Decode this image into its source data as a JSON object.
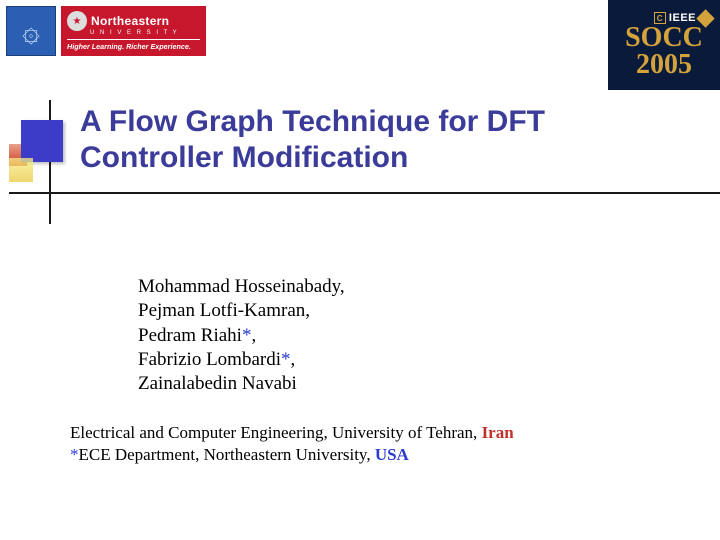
{
  "logos": {
    "tehran_glyph": "۞",
    "northeastern": {
      "name": "Northeastern",
      "univ": "U N I V E R S I T Y",
      "tagline": "Higher Learning. Richer Experience."
    },
    "socc": {
      "ieee": "IEEE",
      "c": "C",
      "line1": "SOCC",
      "line2": "2005"
    }
  },
  "title": "A Flow Graph Technique for DFT Controller Modification",
  "authors": {
    "a1": "Mohammad Hosseinabady,",
    "a2": "Pejman Lotfi-Kamran,",
    "a3_name": "Pedram Riahi",
    "a4_name": "Fabrizio Lombardi",
    "a5": "Zainalabedin Navabi",
    "star": "*",
    "comma": ","
  },
  "affil": {
    "line1_main": "Electrical and Computer Engineering, University of Tehran, ",
    "line1_country": "Iran",
    "line2_star": "*",
    "line2_main": "ECE Department, Northeastern University, ",
    "line2_country": "USA"
  },
  "colors": {
    "title": "#3b3b99",
    "star": "#2a3bd0",
    "iran": "#c03028",
    "usa": "#2a3bd0",
    "ne_bg": "#c7172c",
    "socc_bg": "#0a1a3a",
    "socc_gold": "#d4a33c",
    "blue_sq": "#3c3cc8"
  }
}
